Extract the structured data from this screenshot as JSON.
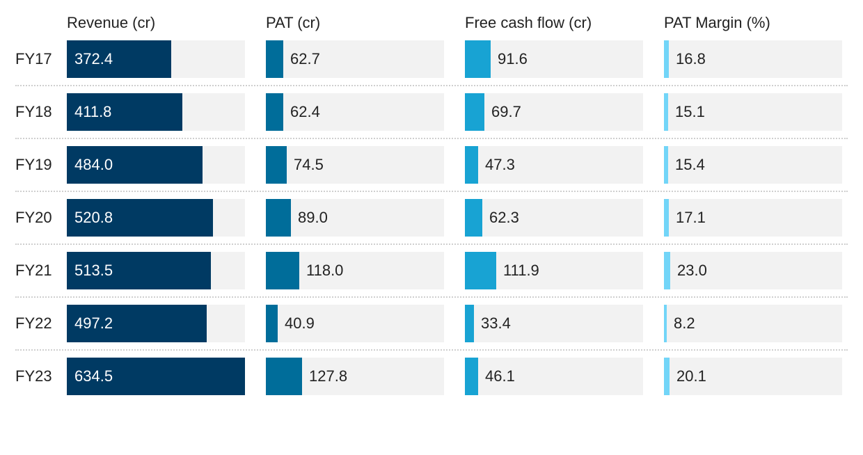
{
  "chart_data": {
    "type": "table",
    "columns": [
      {
        "name": "Revenue (cr)",
        "color": "#003a63",
        "max": 634.5,
        "label_inside": true
      },
      {
        "name": "PAT (cr)",
        "color": "#006d9a",
        "max": 634.5,
        "label_inside": false
      },
      {
        "name": "Free cash flow (cr)",
        "color": "#18a3d3",
        "max": 634.5,
        "label_inside": false
      },
      {
        "name": "PAT Margin (%)",
        "color": "#72d5f8",
        "max": 634.5,
        "label_inside": false
      }
    ],
    "categories": [
      "FY17",
      "FY18",
      "FY19",
      "FY20",
      "FY21",
      "FY22",
      "FY23"
    ],
    "values": [
      [
        "372.4",
        "62.7",
        "91.6",
        "16.8"
      ],
      [
        "411.8",
        "62.4",
        "69.7",
        "15.1"
      ],
      [
        "484.0",
        "74.5",
        "47.3",
        "15.4"
      ],
      [
        "520.8",
        "89.0",
        "62.3",
        "17.1"
      ],
      [
        "513.5",
        "118.0",
        "111.9",
        "23.0"
      ],
      [
        "497.2",
        "40.9",
        "33.4",
        "8.2"
      ],
      [
        "634.5",
        "127.8",
        "46.1",
        "20.1"
      ]
    ]
  }
}
